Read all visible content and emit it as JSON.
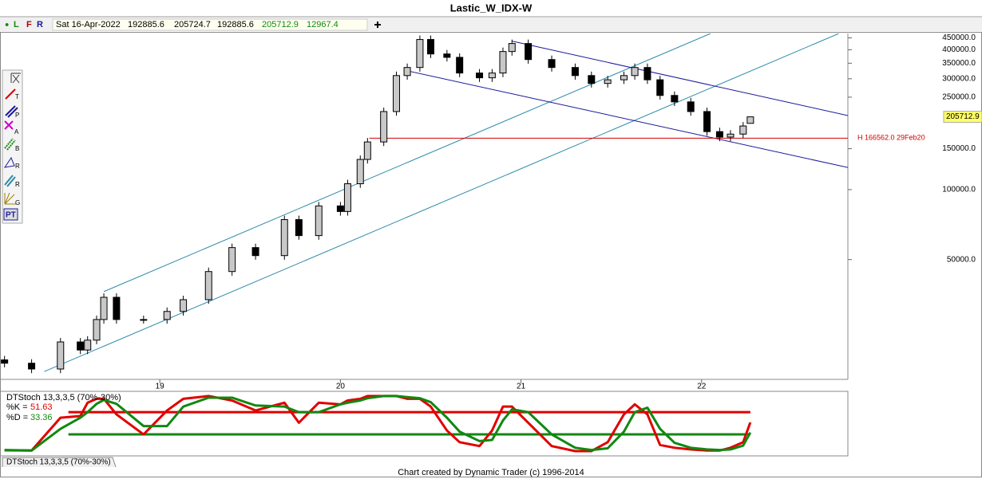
{
  "title": "Lastic_W_IDX-W",
  "toolbar": {
    "flags": [
      "●",
      "L",
      "F",
      "R"
    ],
    "date": "Sat 16-Apr-2022",
    "volume": "12967.4"
  },
  "tools": [
    "T",
    "P",
    "A",
    "B",
    "R",
    "R",
    "G",
    "PT"
  ],
  "tab": "DTStoch 13,3,3,5 (70%-30%)",
  "footer": "Chart created by Dynamic Trader  (c) 1996-2014",
  "chart_data": [
    {
      "type": "candlestick",
      "log_scale": true,
      "xlim": [
        2018.115,
        2022.81
      ],
      "ylim": [
        15250,
        470000
      ],
      "xticks": [
        {
          "value": 2019,
          "label": "19"
        },
        {
          "value": 2020,
          "label": "20"
        },
        {
          "value": 2021,
          "label": "21"
        },
        {
          "value": 2022,
          "label": "22"
        }
      ],
      "yticks": [
        {
          "value": 450000,
          "label": "450000.0"
        },
        {
          "value": 400000,
          "label": "400000.0"
        },
        {
          "value": 350000,
          "label": "350000.0"
        },
        {
          "value": 300000,
          "label": "300000.0"
        },
        {
          "value": 250000,
          "label": "250000.0"
        },
        {
          "value": 150000,
          "label": "150000.0"
        },
        {
          "value": 100000,
          "label": "100000.0"
        },
        {
          "value": 50000,
          "label": "50000.0"
        }
      ],
      "up_color": "#c8c8c8",
      "down_color": "#000000",
      "x": [
        2018.14,
        2018.29,
        2018.45,
        2018.56,
        2018.6,
        2018.65,
        2018.69,
        2018.76,
        2018.91,
        2019.04,
        2019.13,
        2019.27,
        2019.4,
        2019.53,
        2019.69,
        2019.77,
        2019.88,
        2020.0,
        2020.04,
        2020.11,
        2020.15,
        2020.24,
        2020.31,
        2020.37,
        2020.44,
        2020.5,
        2020.59,
        2020.66,
        2020.77,
        2020.84,
        2020.9,
        2020.95,
        2021.04,
        2021.17,
        2021.3,
        2021.39,
        2021.48,
        2021.57,
        2021.63,
        2021.7,
        2021.77,
        2021.85,
        2021.94,
        2022.03,
        2022.1,
        2022.16,
        2022.23,
        2022.27
      ],
      "open": [
        18500,
        17900,
        16900,
        22100,
        20400,
        22500,
        27600,
        34400,
        27600,
        27600,
        29900,
        33600,
        44400,
        56300,
        52000,
        74300,
        63400,
        85100,
        80500,
        106000,
        134900,
        160400,
        216800,
        309700,
        335500,
        442800,
        383700,
        371000,
        317600,
        302900,
        317600,
        393000,
        425400,
        363000,
        335500,
        309700,
        286400,
        297000,
        309700,
        335500,
        297000,
        254300,
        238600,
        216800,
        177700,
        168300,
        173400,
        192885.6
      ],
      "high": [
        19240,
        18620,
        22980,
        22980,
        23400,
        28700,
        35780,
        35780,
        28700,
        31100,
        34940,
        46180,
        58550,
        58550,
        77270,
        77270,
        88500,
        88500,
        110240,
        140300,
        166820,
        225470,
        322090,
        348920,
        460510,
        460510,
        399050,
        385840,
        330300,
        330300,
        408720,
        442420,
        442420,
        377520,
        348920,
        322090,
        308880,
        322090,
        348920,
        348920,
        308880,
        264470,
        248140,
        225470,
        184810,
        180340,
        195420,
        205724.7
      ],
      "low": [
        17180,
        16220,
        16220,
        19580,
        19580,
        21600,
        26500,
        26500,
        26500,
        26500,
        28700,
        32260,
        42620,
        49920,
        49920,
        60860,
        60860,
        77280,
        77280,
        101760,
        129500,
        153980,
        208130,
        297310,
        322080,
        368350,
        356160,
        304900,
        290780,
        290780,
        304900,
        377280,
        348480,
        322080,
        297310,
        274940,
        274940,
        285120,
        297310,
        285120,
        244130,
        229060,
        208130,
        170590,
        161570,
        161570,
        166460,
        192885.6
      ],
      "close": [
        17900,
        16900,
        22100,
        20400,
        22500,
        27600,
        34400,
        27600,
        27600,
        29900,
        33600,
        44400,
        56300,
        52000,
        74300,
        63400,
        85100,
        80500,
        106000,
        134900,
        160400,
        216800,
        309700,
        335500,
        442800,
        383700,
        371000,
        317600,
        302900,
        317600,
        393000,
        425400,
        363000,
        335500,
        309700,
        286400,
        297000,
        309700,
        335500,
        297000,
        254300,
        238600,
        216800,
        177700,
        168300,
        173400,
        187900,
        205712.9
      ],
      "lines": [
        {
          "color": "#2a8aa8",
          "points": [
            [
              2018.69,
              36400
            ],
            [
              2022.05,
              470000
            ]
          ]
        },
        {
          "color": "#2a8aa8",
          "points": [
            [
              2018.36,
              16480
            ],
            [
              2022.76,
              470000
            ]
          ]
        },
        {
          "color": "#1a1a9a",
          "points": [
            [
              2020.95,
              435500
            ],
            [
              2022.81,
              208400
            ]
          ]
        },
        {
          "color": "#1a1a9a",
          "points": [
            [
              2020.35,
              327300
            ],
            [
              2022.81,
              124500
            ]
          ]
        }
      ],
      "hline": {
        "value": 166562,
        "x": 2020.16,
        "label": "H 166562.0 29Feb20",
        "color": "#d00000"
      }
    },
    {
      "type": "line",
      "title": "DTStoch 13,3,3,5 (70%-30%)",
      "xlim": [
        2018.115,
        2022.81
      ],
      "ylim": [
        -8.6,
        106
      ],
      "levels": [
        {
          "value": 70,
          "color": "#e00000"
        },
        {
          "value": 30,
          "color": "#118811"
        }
      ],
      "x": [
        2018.14,
        2018.29,
        2018.45,
        2018.56,
        2018.6,
        2018.65,
        2018.69,
        2018.76,
        2018.91,
        2019.04,
        2019.13,
        2019.27,
        2019.4,
        2019.53,
        2019.69,
        2019.77,
        2019.88,
        2020.0,
        2020.04,
        2020.11,
        2020.15,
        2020.24,
        2020.31,
        2020.37,
        2020.44,
        2020.5,
        2020.59,
        2020.66,
        2020.77,
        2020.84,
        2020.9,
        2020.95,
        2021.04,
        2021.17,
        2021.3,
        2021.39,
        2021.48,
        2021.57,
        2021.63,
        2021.7,
        2021.77,
        2021.85,
        2021.94,
        2022.03,
        2022.1,
        2022.16,
        2022.23,
        2022.27
      ],
      "series": [
        {
          "name": "%K =",
          "color": "#e00000",
          "values": [
            1.4,
            1,
            60,
            63,
            87,
            94,
            94,
            66,
            30,
            73,
            94,
            99,
            91,
            73,
            87,
            51,
            87,
            84,
            91,
            94,
            99,
            99,
            99,
            94,
            94,
            80,
            37,
            16,
            9,
            37,
            80,
            80,
            51,
            9,
            0,
            0,
            16,
            66,
            84,
            66,
            11,
            6,
            3,
            1,
            1,
            6,
            16,
            51.63
          ]
        },
        {
          "name": "%D =",
          "color": "#118811",
          "values": [
            2,
            1,
            40,
            60,
            70,
            85,
            92,
            85,
            45,
            45,
            80,
            96,
            96,
            82,
            80,
            70,
            70,
            84,
            87,
            91,
            95,
            99,
            99,
            97,
            95,
            88,
            60,
            35,
            18,
            20,
            55,
            75,
            70,
            30,
            6,
            2,
            5,
            35,
            70,
            78,
            40,
            15,
            6,
            3,
            2,
            3,
            10,
            33.36
          ]
        }
      ]
    }
  ]
}
